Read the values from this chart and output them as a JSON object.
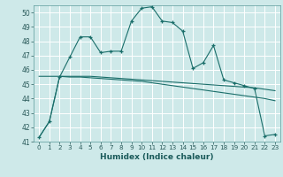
{
  "xlabel": "Humidex (Indice chaleur)",
  "xlim": [
    -0.5,
    23.5
  ],
  "ylim": [
    41,
    50.5
  ],
  "yticks": [
    41,
    42,
    43,
    44,
    45,
    46,
    47,
    48,
    49,
    50
  ],
  "xticks": [
    0,
    1,
    2,
    3,
    4,
    5,
    6,
    7,
    8,
    9,
    10,
    11,
    12,
    13,
    14,
    15,
    16,
    17,
    18,
    19,
    20,
    21,
    22,
    23
  ],
  "bg_color": "#cee9e9",
  "line_color": "#1a6e6a",
  "grid_color": "#ffffff",
  "series1_x": [
    0,
    1,
    2,
    3,
    4,
    5,
    6,
    7,
    8,
    9,
    10,
    11,
    12,
    13,
    14,
    15,
    16,
    17,
    18,
    19,
    20,
    21,
    22,
    23
  ],
  "series1_y": [
    41.3,
    42.4,
    45.5,
    46.9,
    48.3,
    48.3,
    47.2,
    47.3,
    47.3,
    49.4,
    50.3,
    50.4,
    49.4,
    49.3,
    48.7,
    46.1,
    46.5,
    47.7,
    45.3,
    45.1,
    44.9,
    44.7,
    41.4,
    41.5
  ],
  "series2_x": [
    0,
    1,
    2,
    3,
    4,
    5,
    6,
    7,
    8,
    9,
    10,
    11,
    12,
    13,
    14,
    15,
    16,
    17,
    18,
    19,
    20,
    21,
    22,
    23
  ],
  "series2_y": [
    41.3,
    42.4,
    45.55,
    45.55,
    45.55,
    45.55,
    45.5,
    45.45,
    45.4,
    45.35,
    45.3,
    45.25,
    45.2,
    45.15,
    45.1,
    45.05,
    45.0,
    44.95,
    44.9,
    44.85,
    44.8,
    44.75,
    44.65,
    44.55
  ],
  "series3_x": [
    0,
    1,
    2,
    3,
    4,
    5,
    6,
    7,
    8,
    9,
    10,
    11,
    12,
    13,
    14,
    15,
    16,
    17,
    18,
    19,
    20,
    21,
    22,
    23
  ],
  "series3_y": [
    45.55,
    45.55,
    45.55,
    45.5,
    45.5,
    45.45,
    45.4,
    45.35,
    45.3,
    45.25,
    45.2,
    45.1,
    45.0,
    44.9,
    44.8,
    44.7,
    44.6,
    44.5,
    44.4,
    44.3,
    44.2,
    44.1,
    44.0,
    43.85
  ]
}
